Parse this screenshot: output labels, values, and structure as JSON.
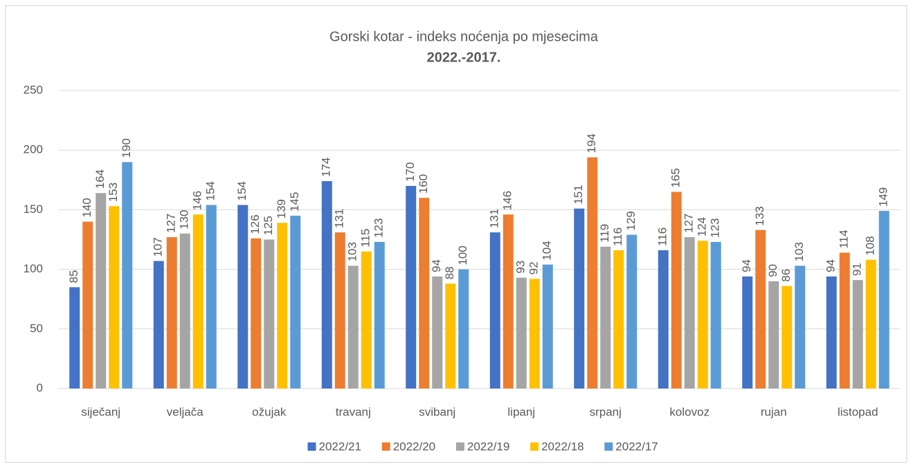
{
  "chart_data": {
    "type": "bar",
    "title": "Gorski kotar - indeks noćenja po mjesecima",
    "subtitle": "2022.-2017.",
    "categories": [
      "siječanj",
      "veljača",
      "ožujak",
      "travanj",
      "svibanj",
      "lipanj",
      "srpanj",
      "kolovoz",
      "rujan",
      "listopad"
    ],
    "series": [
      {
        "name": "2022/21",
        "color": "#4472c4",
        "values": [
          85,
          107,
          154,
          174,
          170,
          131,
          151,
          116,
          94,
          94
        ]
      },
      {
        "name": "2022/20",
        "color": "#ed7d31",
        "values": [
          140,
          127,
          126,
          131,
          160,
          146,
          194,
          165,
          133,
          114
        ]
      },
      {
        "name": "2022/19",
        "color": "#a5a5a5",
        "values": [
          164,
          130,
          125,
          103,
          94,
          93,
          119,
          127,
          90,
          91
        ]
      },
      {
        "name": "2022/18",
        "color": "#ffc000",
        "values": [
          153,
          146,
          139,
          115,
          88,
          92,
          116,
          124,
          86,
          108
        ]
      },
      {
        "name": "2022/17",
        "color": "#5b9bd5",
        "values": [
          190,
          154,
          145,
          123,
          100,
          104,
          129,
          123,
          103,
          149
        ]
      }
    ],
    "ylim": [
      0,
      250
    ],
    "yticks": [
      0,
      50,
      100,
      150,
      200,
      250
    ],
    "grid": true,
    "legend": "bottom"
  }
}
